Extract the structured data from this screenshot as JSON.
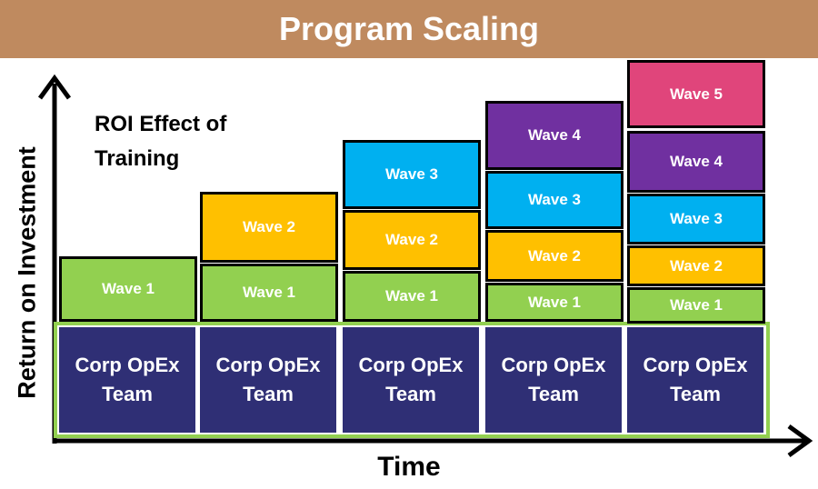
{
  "title": "Program Scaling",
  "annotation": "ROI Effect of Training",
  "y_axis_label": "Return on Investment",
  "x_axis_label": "Time",
  "columns": [
    {
      "base": "Corp OpEx Team",
      "waves": [
        "Wave 1"
      ]
    },
    {
      "base": "Corp OpEx Team",
      "waves": [
        "Wave 1",
        "Wave 2"
      ]
    },
    {
      "base": "Corp OpEx Team",
      "waves": [
        "Wave 1",
        "Wave 2",
        "Wave 3"
      ]
    },
    {
      "base": "Corp OpEx Team",
      "waves": [
        "Wave 1",
        "Wave 2",
        "Wave 3",
        "Wave 4"
      ]
    },
    {
      "base": "Corp OpEx Team",
      "waves": [
        "Wave 1",
        "Wave 2",
        "Wave 3",
        "Wave 4",
        "Wave 5"
      ]
    }
  ]
}
